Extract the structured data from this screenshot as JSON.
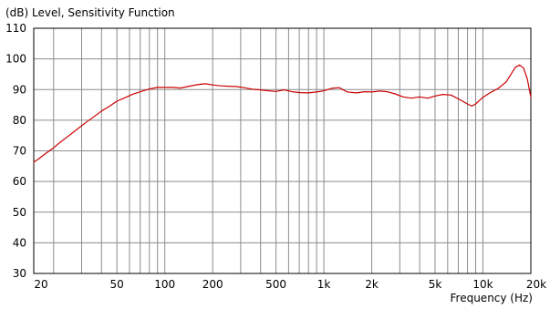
{
  "chart_data": {
    "type": "line",
    "title": "(dB)  Level,  Sensitivity Function",
    "xlabel": "Frequency  (Hz)",
    "ylabel": "",
    "x_scale": "log",
    "xlim": [
      15,
      20000
    ],
    "ylim": [
      30,
      110
    ],
    "grid": true,
    "x_ticks": [
      {
        "value": 20,
        "label": "20"
      },
      {
        "value": 50,
        "label": "50"
      },
      {
        "value": 100,
        "label": "100"
      },
      {
        "value": 200,
        "label": "200"
      },
      {
        "value": 500,
        "label": "500"
      },
      {
        "value": 1000,
        "label": "1k"
      },
      {
        "value": 2000,
        "label": "2k"
      },
      {
        "value": 5000,
        "label": "5k"
      },
      {
        "value": 10000,
        "label": "10k"
      },
      {
        "value": 20000,
        "label": "20k"
      }
    ],
    "y_ticks": [
      30,
      40,
      50,
      60,
      70,
      80,
      90,
      100,
      110
    ],
    "line_color": "#cc0000",
    "grid_color": "#8c8c8c",
    "series": [
      {
        "points": [
          [
            15,
            66.3
          ],
          [
            16,
            67.3
          ],
          [
            18,
            69.3
          ],
          [
            20,
            71.0
          ],
          [
            22,
            72.8
          ],
          [
            25,
            75.0
          ],
          [
            28,
            77.0
          ],
          [
            32,
            79.3
          ],
          [
            36,
            81.2
          ],
          [
            40,
            83.0
          ],
          [
            45,
            84.6
          ],
          [
            50,
            86.2
          ],
          [
            56,
            87.3
          ],
          [
            63,
            88.5
          ],
          [
            71,
            89.4
          ],
          [
            80,
            90.2
          ],
          [
            90,
            90.7
          ],
          [
            100,
            90.7
          ],
          [
            112,
            90.7
          ],
          [
            125,
            90.5
          ],
          [
            140,
            91.0
          ],
          [
            160,
            91.6
          ],
          [
            180,
            91.9
          ],
          [
            200,
            91.5
          ],
          [
            224,
            91.2
          ],
          [
            250,
            91.1
          ],
          [
            280,
            91.0
          ],
          [
            315,
            90.6
          ],
          [
            355,
            90.1
          ],
          [
            400,
            89.9
          ],
          [
            450,
            89.6
          ],
          [
            500,
            89.4
          ],
          [
            560,
            89.9
          ],
          [
            630,
            89.3
          ],
          [
            710,
            89.0
          ],
          [
            800,
            88.9
          ],
          [
            900,
            89.2
          ],
          [
            1000,
            89.6
          ],
          [
            1120,
            90.4
          ],
          [
            1250,
            90.6
          ],
          [
            1400,
            89.2
          ],
          [
            1600,
            88.9
          ],
          [
            1800,
            89.3
          ],
          [
            2000,
            89.2
          ],
          [
            2240,
            89.5
          ],
          [
            2500,
            89.3
          ],
          [
            2800,
            88.6
          ],
          [
            3150,
            87.6
          ],
          [
            3550,
            87.2
          ],
          [
            4000,
            87.6
          ],
          [
            4500,
            87.2
          ],
          [
            5000,
            87.9
          ],
          [
            5600,
            88.4
          ],
          [
            6300,
            88.2
          ],
          [
            7100,
            86.8
          ],
          [
            8000,
            85.3
          ],
          [
            8500,
            84.6
          ],
          [
            9000,
            85.3
          ],
          [
            10000,
            87.5
          ],
          [
            11200,
            89.1
          ],
          [
            12500,
            90.4
          ],
          [
            14000,
            92.5
          ],
          [
            15000,
            95.0
          ],
          [
            16000,
            97.3
          ],
          [
            17000,
            98.0
          ],
          [
            18000,
            97.0
          ],
          [
            19000,
            93.5
          ],
          [
            20000,
            87.5
          ]
        ]
      }
    ]
  }
}
